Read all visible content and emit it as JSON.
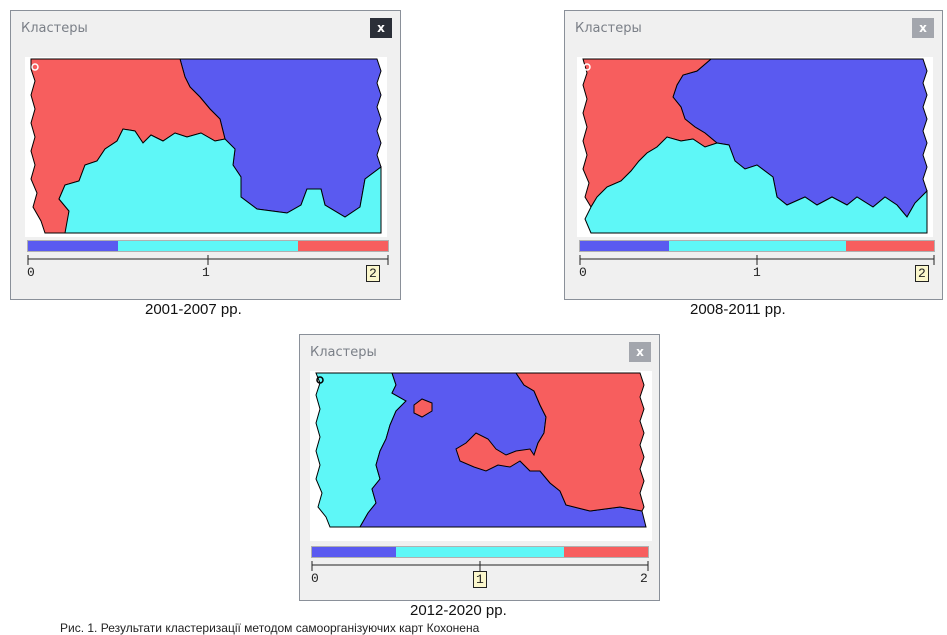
{
  "colors": {
    "cluster_0": "#5a5af0",
    "cluster_1": "#5ef7f7",
    "cluster_2": "#f75e5e",
    "hex_bg": "#ffffff",
    "panel_bg": "#f0f0f0"
  },
  "panels": [
    {
      "title": "Кластеры",
      "close_label": "x",
      "caption": "2001-2007 рр.",
      "scale": {
        "min_label": "0",
        "mid_label": "1",
        "max_label": "2",
        "selected": "2"
      }
    },
    {
      "title": "Кластеры",
      "close_label": "x",
      "caption": "2008-2011 рр.",
      "scale": {
        "min_label": "0",
        "mid_label": "1",
        "max_label": "2",
        "selected": "2"
      }
    },
    {
      "title": "Кластеры",
      "close_label": "x",
      "caption": "2012-2020 рр.",
      "scale": {
        "min_label": "0",
        "mid_label": "1",
        "max_label": "2",
        "selected": "1"
      }
    }
  ],
  "footer_text": "Рис. 1. Результати кластеризації методом самоорганізуючих карт Кохонена"
}
